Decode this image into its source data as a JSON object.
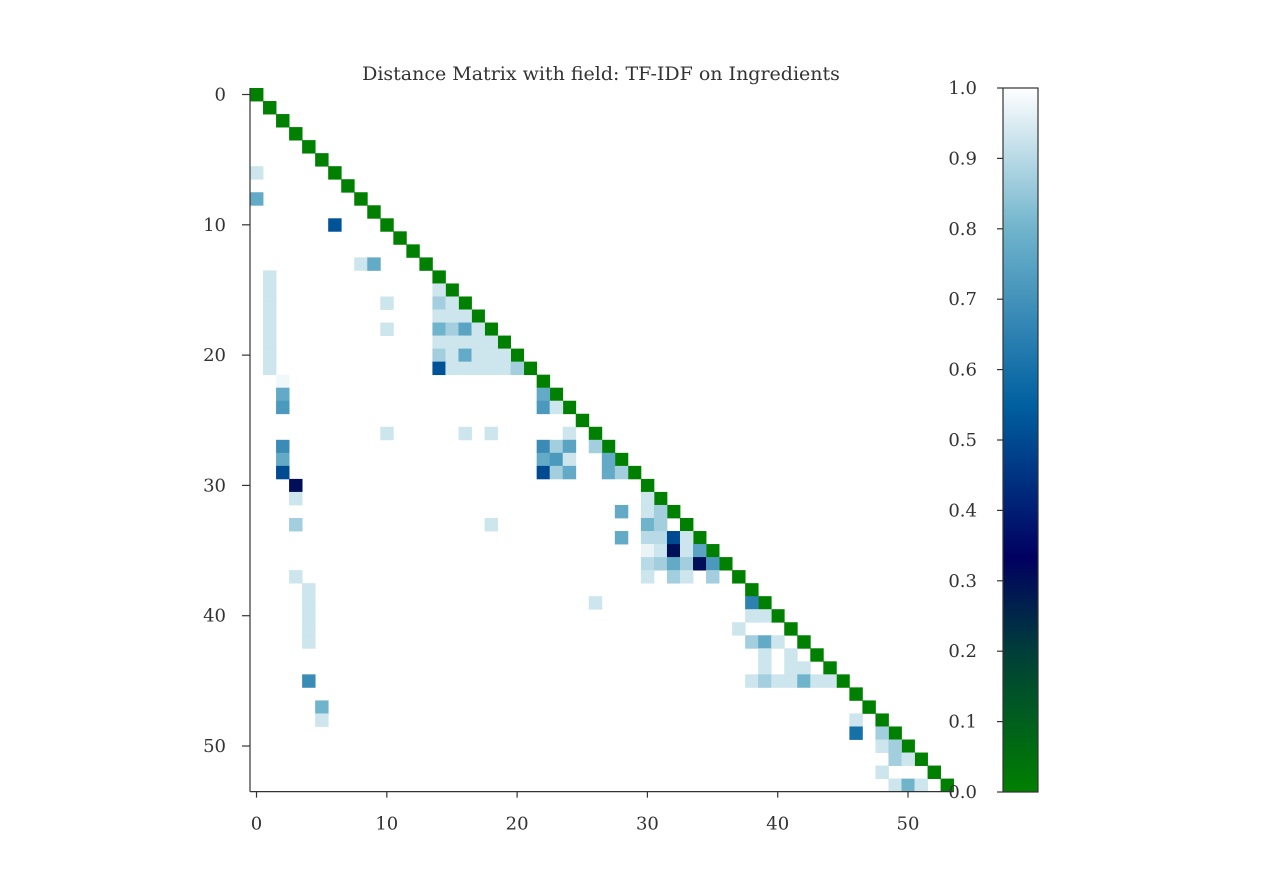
{
  "chart_data": {
    "type": "heatmap",
    "title": "Distance Matrix with field: TF-IDF on Ingredients",
    "xlabel": "",
    "ylabel": "",
    "size": 54,
    "xticks": [
      "0",
      "10",
      "20",
      "30",
      "40",
      "50"
    ],
    "yticks": [
      "0",
      "10",
      "20",
      "30",
      "40",
      "50"
    ],
    "colorbar": {
      "min": 0.0,
      "max": 1.0,
      "ticks": [
        "0.0",
        "0.1",
        "0.2",
        "0.3",
        "0.4",
        "0.5",
        "0.6",
        "0.7",
        "0.8",
        "0.9",
        "1.0"
      ],
      "colormap": "ocean",
      "stops": [
        "#008000",
        "#003e3a",
        "#000060",
        "#0060a0",
        "#70b4cc",
        "#ffffff"
      ]
    },
    "diagonal_value": 0.0,
    "background_value": 1.0,
    "cells": [
      [
        6,
        0,
        0.93
      ],
      [
        8,
        0,
        0.77
      ],
      [
        10,
        6,
        0.52
      ],
      [
        13,
        8,
        0.93
      ],
      [
        13,
        9,
        0.77
      ],
      [
        14,
        1,
        0.93
      ],
      [
        15,
        1,
        0.93
      ],
      [
        16,
        1,
        0.93
      ],
      [
        17,
        1,
        0.93
      ],
      [
        18,
        1,
        0.93
      ],
      [
        19,
        1,
        0.93
      ],
      [
        20,
        1,
        0.93
      ],
      [
        21,
        1,
        0.93
      ],
      [
        15,
        14,
        0.93
      ],
      [
        16,
        10,
        0.93
      ],
      [
        16,
        14,
        0.87
      ],
      [
        16,
        15,
        0.93
      ],
      [
        17,
        14,
        0.93
      ],
      [
        17,
        15,
        0.93
      ],
      [
        17,
        16,
        0.93
      ],
      [
        18,
        10,
        0.93
      ],
      [
        18,
        14,
        0.8
      ],
      [
        18,
        15,
        0.87
      ],
      [
        18,
        16,
        0.75
      ],
      [
        18,
        17,
        0.93
      ],
      [
        19,
        14,
        0.93
      ],
      [
        19,
        15,
        0.93
      ],
      [
        19,
        16,
        0.93
      ],
      [
        19,
        17,
        0.93
      ],
      [
        19,
        18,
        0.93
      ],
      [
        20,
        14,
        0.87
      ],
      [
        20,
        15,
        0.93
      ],
      [
        20,
        16,
        0.77
      ],
      [
        20,
        17,
        0.93
      ],
      [
        20,
        18,
        0.93
      ],
      [
        20,
        19,
        0.93
      ],
      [
        21,
        14,
        0.52
      ],
      [
        21,
        15,
        0.93
      ],
      [
        21,
        16,
        0.93
      ],
      [
        21,
        17,
        0.93
      ],
      [
        21,
        18,
        0.93
      ],
      [
        21,
        19,
        0.93
      ],
      [
        21,
        20,
        0.87
      ],
      [
        22,
        2,
        0.98
      ],
      [
        23,
        2,
        0.77
      ],
      [
        24,
        2,
        0.72
      ],
      [
        23,
        22,
        0.77
      ],
      [
        24,
        22,
        0.72
      ],
      [
        24,
        23,
        0.93
      ],
      [
        26,
        10,
        0.93
      ],
      [
        26,
        16,
        0.93
      ],
      [
        26,
        18,
        0.93
      ],
      [
        26,
        24,
        0.93
      ],
      [
        27,
        2,
        0.68
      ],
      [
        27,
        22,
        0.68
      ],
      [
        27,
        23,
        0.87
      ],
      [
        27,
        24,
        0.75
      ],
      [
        27,
        26,
        0.87
      ],
      [
        28,
        2,
        0.77
      ],
      [
        28,
        22,
        0.77
      ],
      [
        28,
        23,
        0.72
      ],
      [
        28,
        24,
        0.93
      ],
      [
        28,
        27,
        0.77
      ],
      [
        29,
        2,
        0.5
      ],
      [
        29,
        22,
        0.5
      ],
      [
        29,
        23,
        0.87
      ],
      [
        29,
        24,
        0.77
      ],
      [
        29,
        27,
        0.77
      ],
      [
        29,
        28,
        0.87
      ],
      [
        30,
        3,
        0.3
      ],
      [
        31,
        3,
        0.93
      ],
      [
        31,
        30,
        0.93
      ],
      [
        32,
        28,
        0.77
      ],
      [
        32,
        30,
        0.93
      ],
      [
        32,
        31,
        0.87
      ],
      [
        33,
        3,
        0.87
      ],
      [
        33,
        18,
        0.93
      ],
      [
        33,
        30,
        0.8
      ],
      [
        33,
        31,
        0.87
      ],
      [
        34,
        28,
        0.77
      ],
      [
        34,
        30,
        0.9
      ],
      [
        34,
        31,
        0.9
      ],
      [
        34,
        32,
        0.5
      ],
      [
        34,
        33,
        0.93
      ],
      [
        35,
        30,
        0.97
      ],
      [
        35,
        31,
        0.93
      ],
      [
        35,
        32,
        0.3
      ],
      [
        35,
        33,
        0.93
      ],
      [
        35,
        34,
        0.75
      ],
      [
        36,
        30,
        0.9
      ],
      [
        36,
        31,
        0.87
      ],
      [
        36,
        32,
        0.77
      ],
      [
        36,
        33,
        0.87
      ],
      [
        36,
        34,
        0.3
      ],
      [
        36,
        35,
        0.72
      ],
      [
        37,
        3,
        0.93
      ],
      [
        37,
        30,
        0.93
      ],
      [
        37,
        32,
        0.87
      ],
      [
        37,
        33,
        0.93
      ],
      [
        37,
        35,
        0.87
      ],
      [
        38,
        4,
        0.93
      ],
      [
        39,
        4,
        0.93
      ],
      [
        39,
        26,
        0.93
      ],
      [
        39,
        38,
        0.65
      ],
      [
        40,
        4,
        0.93
      ],
      [
        40,
        38,
        0.93
      ],
      [
        40,
        39,
        0.93
      ],
      [
        41,
        4,
        0.93
      ],
      [
        41,
        37,
        0.93
      ],
      [
        42,
        4,
        0.93
      ],
      [
        42,
        38,
        0.87
      ],
      [
        42,
        39,
        0.77
      ],
      [
        42,
        40,
        0.93
      ],
      [
        43,
        39,
        0.93
      ],
      [
        43,
        41,
        0.93
      ],
      [
        44,
        39,
        0.93
      ],
      [
        44,
        41,
        0.93
      ],
      [
        44,
        42,
        0.93
      ],
      [
        45,
        4,
        0.68
      ],
      [
        45,
        38,
        0.93
      ],
      [
        45,
        39,
        0.87
      ],
      [
        45,
        40,
        0.93
      ],
      [
        45,
        41,
        0.93
      ],
      [
        45,
        42,
        0.8
      ],
      [
        45,
        43,
        0.93
      ],
      [
        45,
        44,
        0.93
      ],
      [
        47,
        5,
        0.8
      ],
      [
        48,
        5,
        0.93
      ],
      [
        48,
        46,
        0.93
      ],
      [
        49,
        46,
        0.6
      ],
      [
        49,
        48,
        0.87
      ],
      [
        50,
        48,
        0.93
      ],
      [
        50,
        49,
        0.87
      ],
      [
        51,
        49,
        0.87
      ],
      [
        51,
        50,
        0.93
      ],
      [
        52,
        48,
        0.93
      ],
      [
        53,
        49,
        0.93
      ],
      [
        53,
        50,
        0.8
      ],
      [
        53,
        51,
        0.93
      ]
    ]
  }
}
